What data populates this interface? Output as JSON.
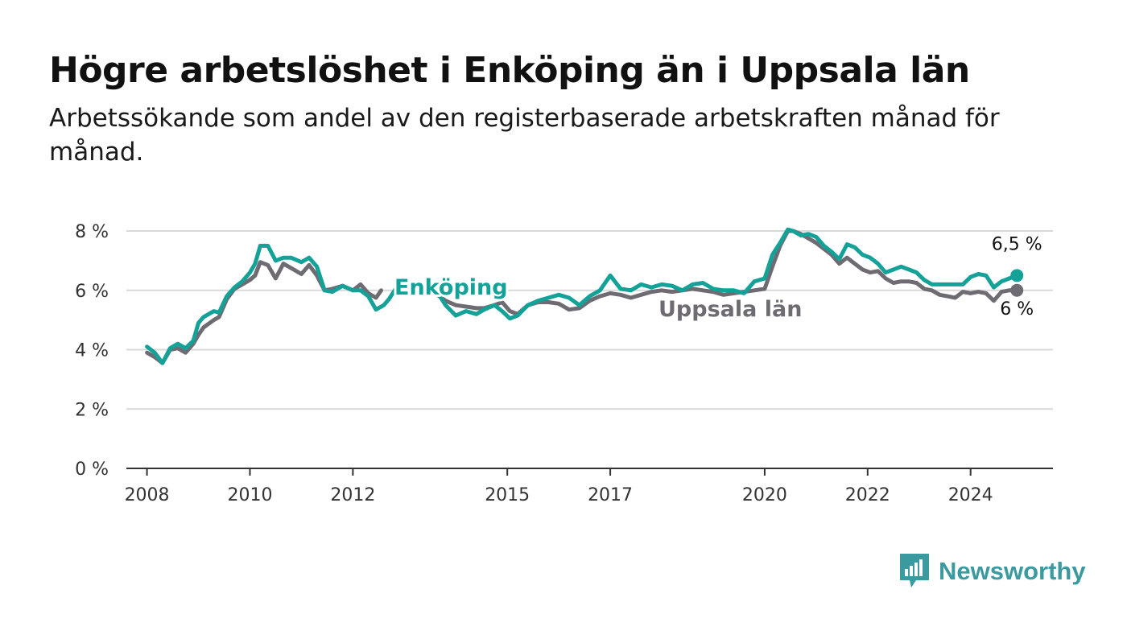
{
  "title": "Högre arbetslöshet i Enköping än i Uppsala län",
  "subtitle": "Arbetssökande som andel av den registerbaserade arbetskraften månad för månad.",
  "brand": {
    "name": "Newsworthy",
    "color": "#3a9aa0",
    "icon": "newsworthy-logo-icon"
  },
  "chart_data": {
    "type": "line",
    "title": "Högre arbetslöshet i Enköping än i Uppsala län",
    "subtitle": "Arbetssökande som andel av den registerbaserade arbetskraften månad för månad.",
    "xlabel": "",
    "ylabel": "",
    "xlim": [
      2007.6,
      2025.6
    ],
    "ylim": [
      0,
      8
    ],
    "grid": true,
    "legend": "inline labels",
    "y_ticks": [
      0,
      2,
      4,
      6,
      8
    ],
    "y_tick_labels": [
      "0 %",
      "2 %",
      "4 %",
      "6 %",
      "8 %"
    ],
    "x_ticks": [
      2008,
      2010,
      2012,
      2015,
      2017,
      2020,
      2022,
      2024
    ],
    "x_tick_labels": [
      "2008",
      "2010",
      "2012",
      "2015",
      "2017",
      "2020",
      "2022",
      "2024"
    ],
    "series": [
      {
        "name": "Uppsala län",
        "color": "#6e6b73",
        "end_label": "6 %",
        "points": [
          [
            2008.0,
            3.9
          ],
          [
            2008.15,
            3.75
          ],
          [
            2008.3,
            3.55
          ],
          [
            2008.45,
            4.0
          ],
          [
            2008.6,
            4.05
          ],
          [
            2008.75,
            3.9
          ],
          [
            2008.9,
            4.2
          ],
          [
            2009.0,
            4.5
          ],
          [
            2009.1,
            4.75
          ],
          [
            2009.3,
            5.0
          ],
          [
            2009.4,
            5.1
          ],
          [
            2009.55,
            5.7
          ],
          [
            2009.7,
            6.05
          ],
          [
            2009.85,
            6.2
          ],
          [
            2010.0,
            6.35
          ],
          [
            2010.1,
            6.5
          ],
          [
            2010.2,
            6.95
          ],
          [
            2010.35,
            6.85
          ],
          [
            2010.5,
            6.4
          ],
          [
            2010.65,
            6.9
          ],
          [
            2010.8,
            6.75
          ],
          [
            2011.0,
            6.55
          ],
          [
            2011.15,
            6.85
          ],
          [
            2011.3,
            6.5
          ],
          [
            2011.45,
            6.0
          ],
          [
            2011.6,
            6.05
          ],
          [
            2011.8,
            6.15
          ],
          [
            2012.0,
            6.0
          ],
          [
            2012.15,
            6.2
          ],
          [
            2012.3,
            5.9
          ],
          [
            2012.45,
            5.75
          ],
          [
            2012.55,
            6.0
          ],
          [
            2013.6,
            5.9
          ],
          [
            2013.8,
            5.65
          ],
          [
            2014.0,
            5.5
          ],
          [
            2014.2,
            5.45
          ],
          [
            2014.4,
            5.4
          ],
          [
            2014.55,
            5.4
          ],
          [
            2014.75,
            5.5
          ],
          [
            2014.9,
            5.6
          ],
          [
            2015.05,
            5.3
          ],
          [
            2015.2,
            5.2
          ],
          [
            2015.4,
            5.5
          ],
          [
            2015.6,
            5.6
          ],
          [
            2015.8,
            5.6
          ],
          [
            2016.0,
            5.55
          ],
          [
            2016.2,
            5.35
          ],
          [
            2016.4,
            5.4
          ],
          [
            2016.6,
            5.65
          ],
          [
            2016.8,
            5.8
          ],
          [
            2017.0,
            5.9
          ],
          [
            2017.2,
            5.85
          ],
          [
            2017.4,
            5.75
          ],
          [
            2017.6,
            5.85
          ],
          [
            2017.8,
            5.95
          ],
          [
            2018.0,
            6.0
          ],
          [
            2018.2,
            5.95
          ],
          [
            2018.4,
            6.0
          ],
          [
            2018.6,
            6.05
          ],
          [
            2018.8,
            6.0
          ],
          [
            2019.0,
            5.95
          ],
          [
            2019.2,
            5.85
          ],
          [
            2019.4,
            5.9
          ],
          [
            2019.6,
            5.95
          ],
          [
            2019.8,
            6.0
          ],
          [
            2020.0,
            6.05
          ],
          [
            2020.15,
            6.8
          ],
          [
            2020.3,
            7.5
          ],
          [
            2020.45,
            8.0
          ],
          [
            2020.55,
            8.0
          ],
          [
            2020.7,
            7.9
          ],
          [
            2020.85,
            7.75
          ],
          [
            2021.0,
            7.6
          ],
          [
            2021.15,
            7.4
          ],
          [
            2021.3,
            7.2
          ],
          [
            2021.45,
            6.9
          ],
          [
            2021.6,
            7.1
          ],
          [
            2021.75,
            6.9
          ],
          [
            2021.9,
            6.7
          ],
          [
            2022.05,
            6.6
          ],
          [
            2022.2,
            6.65
          ],
          [
            2022.35,
            6.4
          ],
          [
            2022.5,
            6.25
          ],
          [
            2022.65,
            6.3
          ],
          [
            2022.8,
            6.3
          ],
          [
            2022.95,
            6.25
          ],
          [
            2023.1,
            6.05
          ],
          [
            2023.25,
            6.0
          ],
          [
            2023.4,
            5.85
          ],
          [
            2023.55,
            5.8
          ],
          [
            2023.7,
            5.75
          ],
          [
            2023.85,
            5.95
          ],
          [
            2024.0,
            5.9
          ],
          [
            2024.15,
            5.95
          ],
          [
            2024.3,
            5.9
          ],
          [
            2024.45,
            5.65
          ],
          [
            2024.6,
            5.95
          ],
          [
            2024.75,
            6.0
          ],
          [
            2024.9,
            6.0
          ]
        ]
      },
      {
        "name": "Enköping",
        "color": "#14a298",
        "end_label": "6,5 %",
        "points": [
          [
            2008.0,
            4.1
          ],
          [
            2008.15,
            3.9
          ],
          [
            2008.3,
            3.55
          ],
          [
            2008.45,
            4.05
          ],
          [
            2008.6,
            4.2
          ],
          [
            2008.75,
            4.05
          ],
          [
            2008.9,
            4.3
          ],
          [
            2009.0,
            4.9
          ],
          [
            2009.1,
            5.1
          ],
          [
            2009.3,
            5.3
          ],
          [
            2009.4,
            5.25
          ],
          [
            2009.55,
            5.8
          ],
          [
            2009.7,
            6.1
          ],
          [
            2009.85,
            6.3
          ],
          [
            2010.0,
            6.6
          ],
          [
            2010.1,
            6.9
          ],
          [
            2010.2,
            7.5
          ],
          [
            2010.35,
            7.5
          ],
          [
            2010.5,
            7.0
          ],
          [
            2010.65,
            7.1
          ],
          [
            2010.8,
            7.1
          ],
          [
            2011.0,
            6.95
          ],
          [
            2011.15,
            7.1
          ],
          [
            2011.3,
            6.8
          ],
          [
            2011.45,
            6.0
          ],
          [
            2011.6,
            5.95
          ],
          [
            2011.8,
            6.15
          ],
          [
            2012.0,
            6.0
          ],
          [
            2012.15,
            6.0
          ],
          [
            2012.3,
            5.8
          ],
          [
            2012.45,
            5.35
          ],
          [
            2012.6,
            5.5
          ],
          [
            2012.7,
            5.7
          ],
          [
            2012.85,
            6.1
          ],
          [
            2013.6,
            6.05
          ],
          [
            2013.8,
            5.5
          ],
          [
            2014.0,
            5.15
          ],
          [
            2014.2,
            5.3
          ],
          [
            2014.4,
            5.2
          ],
          [
            2014.55,
            5.35
          ],
          [
            2014.75,
            5.5
          ],
          [
            2014.9,
            5.3
          ],
          [
            2015.05,
            5.05
          ],
          [
            2015.2,
            5.15
          ],
          [
            2015.4,
            5.5
          ],
          [
            2015.6,
            5.65
          ],
          [
            2015.8,
            5.75
          ],
          [
            2016.0,
            5.85
          ],
          [
            2016.2,
            5.75
          ],
          [
            2016.4,
            5.5
          ],
          [
            2016.6,
            5.8
          ],
          [
            2016.8,
            6.0
          ],
          [
            2017.0,
            6.5
          ],
          [
            2017.2,
            6.05
          ],
          [
            2017.4,
            6.0
          ],
          [
            2017.6,
            6.2
          ],
          [
            2017.8,
            6.1
          ],
          [
            2018.0,
            6.2
          ],
          [
            2018.2,
            6.15
          ],
          [
            2018.4,
            6.0
          ],
          [
            2018.6,
            6.2
          ],
          [
            2018.8,
            6.25
          ],
          [
            2019.0,
            6.05
          ],
          [
            2019.2,
            6.0
          ],
          [
            2019.4,
            6.0
          ],
          [
            2019.6,
            5.9
          ],
          [
            2019.8,
            6.3
          ],
          [
            2020.0,
            6.4
          ],
          [
            2020.15,
            7.2
          ],
          [
            2020.3,
            7.6
          ],
          [
            2020.45,
            8.05
          ],
          [
            2020.55,
            8.0
          ],
          [
            2020.7,
            7.85
          ],
          [
            2020.85,
            7.9
          ],
          [
            2021.0,
            7.8
          ],
          [
            2021.15,
            7.5
          ],
          [
            2021.3,
            7.3
          ],
          [
            2021.45,
            7.05
          ],
          [
            2021.6,
            7.55
          ],
          [
            2021.75,
            7.45
          ],
          [
            2021.9,
            7.2
          ],
          [
            2022.05,
            7.1
          ],
          [
            2022.2,
            6.9
          ],
          [
            2022.35,
            6.6
          ],
          [
            2022.5,
            6.7
          ],
          [
            2022.65,
            6.8
          ],
          [
            2022.8,
            6.7
          ],
          [
            2022.95,
            6.6
          ],
          [
            2023.1,
            6.35
          ],
          [
            2023.25,
            6.2
          ],
          [
            2023.4,
            6.2
          ],
          [
            2023.55,
            6.2
          ],
          [
            2023.7,
            6.2
          ],
          [
            2023.85,
            6.2
          ],
          [
            2024.0,
            6.45
          ],
          [
            2024.15,
            6.55
          ],
          [
            2024.3,
            6.5
          ],
          [
            2024.45,
            6.1
          ],
          [
            2024.6,
            6.3
          ],
          [
            2024.75,
            6.4
          ],
          [
            2024.9,
            6.5
          ]
        ]
      }
    ]
  }
}
